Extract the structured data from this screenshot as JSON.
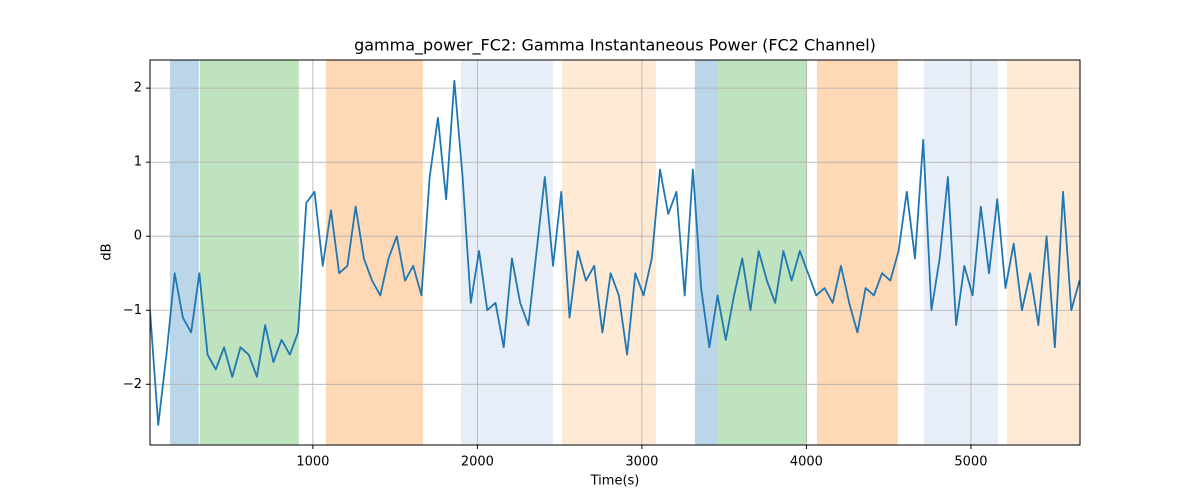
{
  "chart_data": {
    "type": "line",
    "title": "gamma_power_FC2: Gamma Instantaneous Power (FC2 Channel)",
    "xlabel": "Time(s)",
    "ylabel": "dB",
    "x": [
      10,
      60,
      110,
      160,
      210,
      260,
      310,
      360,
      410,
      460,
      510,
      560,
      610,
      660,
      710,
      760,
      810,
      860,
      910,
      960,
      1010,
      1060,
      1110,
      1160,
      1210,
      1260,
      1310,
      1360,
      1410,
      1460,
      1510,
      1560,
      1610,
      1660,
      1710,
      1760,
      1810,
      1860,
      1910,
      1960,
      2010,
      2060,
      2110,
      2160,
      2210,
      2260,
      2310,
      2360,
      2410,
      2460,
      2510,
      2560,
      2610,
      2660,
      2710,
      2760,
      2810,
      2860,
      2910,
      2960,
      3010,
      3060,
      3110,
      3160,
      3210,
      3260,
      3310,
      3360,
      3410,
      3460,
      3510,
      3560,
      3610,
      3660,
      3710,
      3760,
      3810,
      3860,
      3910,
      3960,
      4010,
      4060,
      4110,
      4160,
      4210,
      4260,
      4310,
      4360,
      4410,
      4460,
      4510,
      4560,
      4610,
      4660,
      4710,
      4760,
      4810,
      4860,
      4910,
      4960,
      5010,
      5060,
      5110,
      5160,
      5210,
      5260,
      5310,
      5360,
      5410,
      5460,
      5510,
      5560,
      5610,
      5660
    ],
    "series": [
      {
        "color": "#1f77b4",
        "values": [
          -1.0,
          -2.55,
          -1.6,
          -0.5,
          -1.1,
          -1.3,
          -0.5,
          -1.6,
          -1.8,
          -1.5,
          -1.9,
          -1.5,
          -1.6,
          -1.9,
          -1.2,
          -1.7,
          -1.4,
          -1.6,
          -1.3,
          0.45,
          0.6,
          -0.4,
          0.35,
          -0.5,
          -0.4,
          0.4,
          -0.3,
          -0.6,
          -0.8,
          -0.3,
          0.0,
          -0.6,
          -0.4,
          -0.8,
          0.8,
          1.6,
          0.5,
          2.1,
          0.8,
          -0.9,
          -0.2,
          -1.0,
          -0.9,
          -1.5,
          -0.3,
          -0.9,
          -1.2,
          -0.2,
          0.8,
          -0.4,
          0.6,
          -1.1,
          -0.2,
          -0.6,
          -0.4,
          -1.3,
          -0.5,
          -0.8,
          -1.6,
          -0.5,
          -0.8,
          -0.3,
          0.9,
          0.3,
          0.6,
          -0.8,
          0.9,
          -0.7,
          -1.5,
          -0.8,
          -1.4,
          -0.8,
          -0.3,
          -1.0,
          -0.2,
          -0.6,
          -0.9,
          -0.2,
          -0.6,
          -0.2,
          -0.5,
          -0.8,
          -0.7,
          -0.9,
          -0.4,
          -0.9,
          -1.3,
          -0.7,
          -0.8,
          -0.5,
          -0.6,
          -0.2,
          0.6,
          -0.3,
          1.3,
          -1.0,
          -0.3,
          0.8,
          -1.2,
          -0.4,
          -0.8,
          0.4,
          -0.5,
          0.5,
          -0.7,
          -0.1,
          -1.0,
          -0.5,
          -1.2,
          0.0,
          -1.5,
          0.6,
          -1.0,
          -0.6
        ]
      }
    ],
    "spans": [
      {
        "start": 131,
        "end": 307,
        "color": "#1f77b4",
        "alpha": 0.3
      },
      {
        "start": 313,
        "end": 915,
        "color": "#2ca02c",
        "alpha": 0.3
      },
      {
        "start": 1079,
        "end": 1669,
        "color": "#ff7f0e",
        "alpha": 0.3
      },
      {
        "start": 1900,
        "end": 2459,
        "color": "#aec7e8",
        "alpha": 0.3
      },
      {
        "start": 2514,
        "end": 3085,
        "color": "#ffbb78",
        "alpha": 0.3
      },
      {
        "start": 3322,
        "end": 3462,
        "color": "#1f77b4",
        "alpha": 0.3
      },
      {
        "start": 3462,
        "end": 4003,
        "color": "#2ca02c",
        "alpha": 0.3
      },
      {
        "start": 4064,
        "end": 4556,
        "color": "#ff7f0e",
        "alpha": 0.3
      },
      {
        "start": 4714,
        "end": 5164,
        "color": "#aec7e8",
        "alpha": 0.3
      },
      {
        "start": 5219,
        "end": 5663,
        "color": "#ffbb78",
        "alpha": 0.3
      }
    ],
    "xlim": [
      10,
      5663
    ],
    "ylim": [
      -2.82,
      2.38
    ],
    "xticks": [
      1000,
      2000,
      3000,
      4000,
      5000
    ],
    "yticks": [
      {
        "value": -2,
        "label": "−2"
      },
      {
        "value": -1,
        "label": "−1"
      },
      0,
      1,
      2
    ],
    "grid": true
  }
}
